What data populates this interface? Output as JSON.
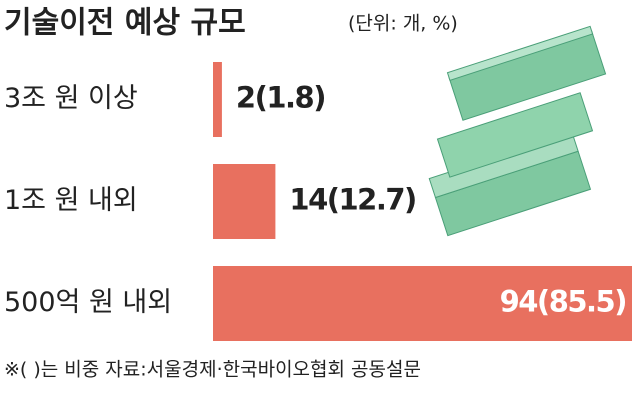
{
  "chart_data": {
    "type": "bar",
    "orientation": "horizontal",
    "title": "기술이전 예상 규모",
    "subtitle": "(단위: 개, %)",
    "categories": [
      "3조 원 이상",
      "1조 원 내외",
      "500억 원 내외"
    ],
    "values": [
      2,
      14,
      94
    ],
    "value_labels": [
      "2(1.8)",
      "14(12.7)",
      "94(85.5)"
    ],
    "color": "#e8705f",
    "note": "※( )는 비중 자료:서울경제·한국바이오협회 공동설문"
  }
}
